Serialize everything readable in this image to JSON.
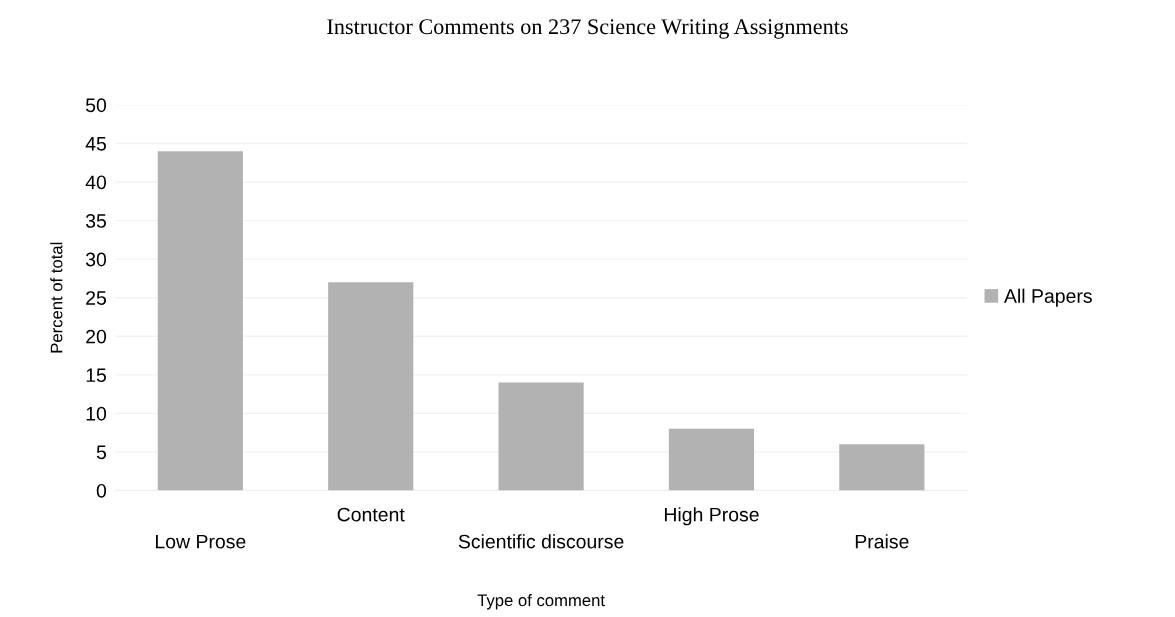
{
  "chart_data": {
    "type": "bar",
    "title": "Instructor Comments on 237 Science Writing Assignments",
    "xlabel": "Type of comment",
    "ylabel": "Percent of total",
    "categories": [
      "Low Prose",
      "Content",
      "Scientific discourse",
      "High Prose",
      "Praise"
    ],
    "series": [
      {
        "name": "All Papers",
        "color": "#b2b2b2",
        "values": [
          44,
          27,
          14,
          8,
          6
        ]
      }
    ],
    "ylim": [
      0,
      50
    ],
    "yticks": [
      0,
      5,
      10,
      15,
      20,
      25,
      30,
      35,
      40,
      45,
      50
    ],
    "grid": "y",
    "legend": "right"
  }
}
